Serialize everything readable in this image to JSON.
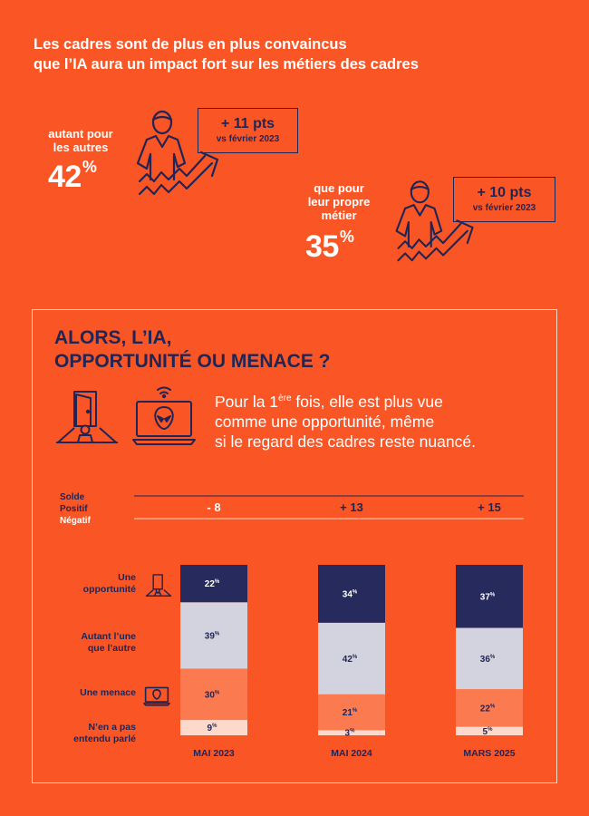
{
  "headline": {
    "line1": "Les cadres sont de plus en plus convaincus",
    "line2": "que l’IA aura un impact fort sur les métiers des cadres"
  },
  "stats": [
    {
      "label_lines": [
        "autant pour",
        "les autres"
      ],
      "value": "42",
      "unit": "%",
      "delta": "+ 11 pts",
      "delta_sub": "vs février 2023"
    },
    {
      "label_lines": [
        "que pour",
        "leur propre",
        "métier"
      ],
      "value": "35",
      "unit": "%",
      "delta": "+ 10 pts",
      "delta_sub": "vs février 2023"
    }
  ],
  "panel": {
    "title_line1": "ALORS, L’IA,",
    "title_line2": "OPPORTUNITÉ OU MENACE ?",
    "intro_pre": "Pour la 1",
    "intro_sup": "ère",
    "intro_post1": " fois, elle est plus vue",
    "intro_line2": "comme une opportunité, même",
    "intro_line3": "si le regard des cadres reste nuancé."
  },
  "solde": {
    "title": "Solde",
    "positive_label": "Positif",
    "negative_label": "Négatif",
    "values": [
      "- 8",
      "+ 13",
      "+ 15"
    ]
  },
  "icons": {
    "person_growth": "person-growth-icon",
    "door": "door-person-icon",
    "alien_laptop": "alien-laptop-icon"
  },
  "colors": {
    "background": "#fa5525",
    "navy": "#1f2555",
    "opportunite": "#262a5c",
    "autant": "#d2d3de",
    "menace": "#fb7a50",
    "nsp": "#fcd9cb"
  },
  "chart_data": {
    "type": "bar",
    "stacked": true,
    "orientation": "vertical",
    "unit": "%",
    "categories": [
      "MAI 2023",
      "MAI 2024",
      "MARS 2025"
    ],
    "series": [
      {
        "name": "Une opportunité",
        "values": [
          22,
          34,
          37
        ],
        "color": "#262a5c"
      },
      {
        "name": "Autant l’une que l’autre",
        "values": [
          39,
          42,
          36
        ],
        "color": "#d2d3de"
      },
      {
        "name": "Une menace",
        "values": [
          30,
          21,
          22
        ],
        "color": "#fb7a50"
      },
      {
        "name": "N’en a pas entendu parlé",
        "values": [
          9,
          3,
          5
        ],
        "color": "#fcd9cb"
      }
    ],
    "row_labels": [
      [
        "Une",
        "opportunité"
      ],
      [
        "Autant l’une",
        "que l’autre"
      ],
      [
        "Une menace"
      ],
      [
        "N’en a pas",
        "entendu parlé"
      ]
    ]
  }
}
